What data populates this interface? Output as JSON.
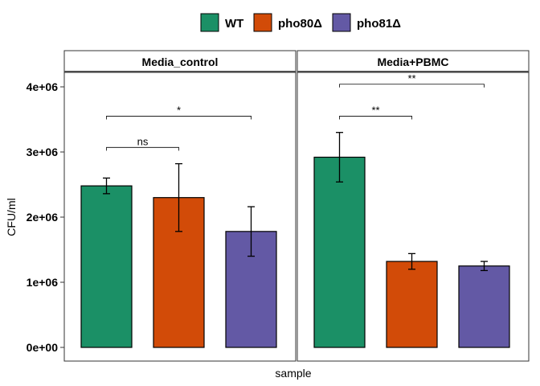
{
  "chart_data": {
    "type": "bar",
    "xlabel": "sample",
    "ylabel": "CFU/ml",
    "ylim": [
      0,
      4200000
    ],
    "yticks": [
      0,
      1000000,
      2000000,
      3000000,
      4000000
    ],
    "ytick_labels": [
      "0e+00",
      "1e+06",
      "2e+06",
      "3e+06",
      "4e+06"
    ],
    "grid": false,
    "legend_position": "top",
    "series": [
      {
        "name": "WT",
        "color": "#1b9066"
      },
      {
        "name": "pho80Δ",
        "color": "#d24b08"
      },
      {
        "name": "pho81Δ",
        "color": "#6359a5"
      }
    ],
    "panels": [
      {
        "title": "Media_control",
        "values": [
          2480000,
          2300000,
          1780000
        ],
        "errors": [
          120000,
          520000,
          380000
        ],
        "comparisons": [
          {
            "from": 0,
            "to": 1,
            "y": 3070000,
            "label": "ns"
          },
          {
            "from": 0,
            "to": 2,
            "y": 3550000,
            "label": "*"
          }
        ]
      },
      {
        "title": "Media+PBMC",
        "values": [
          2920000,
          1320000,
          1250000
        ],
        "errors": [
          380000,
          120000,
          70000
        ],
        "comparisons": [
          {
            "from": 0,
            "to": 1,
            "y": 3550000,
            "label": "**"
          },
          {
            "from": 0,
            "to": 2,
            "y": 4040000,
            "label": "**"
          }
        ]
      }
    ]
  }
}
